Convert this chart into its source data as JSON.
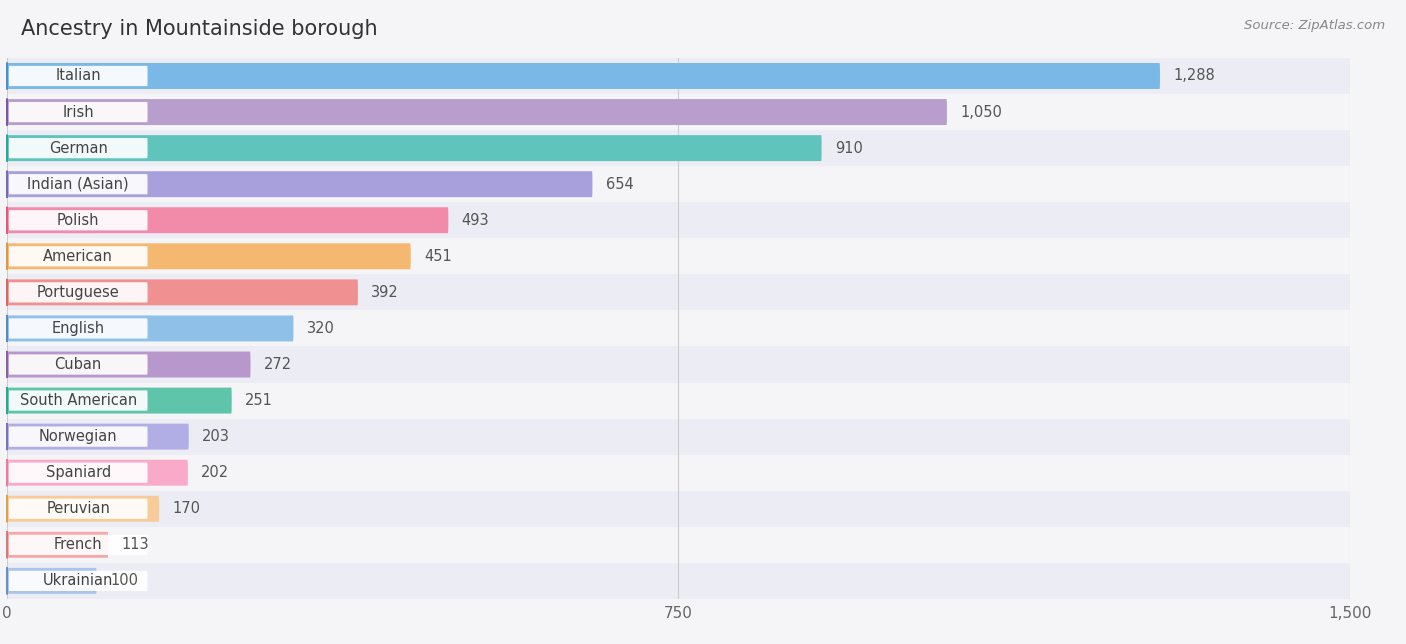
{
  "title": "Ancestry in Mountainside borough",
  "source": "Source: ZipAtlas.com",
  "categories": [
    "Italian",
    "Irish",
    "German",
    "Indian (Asian)",
    "Polish",
    "American",
    "Portuguese",
    "English",
    "Cuban",
    "South American",
    "Norwegian",
    "Spaniard",
    "Peruvian",
    "French",
    "Ukrainian"
  ],
  "values": [
    1288,
    1050,
    910,
    654,
    493,
    451,
    392,
    320,
    272,
    251,
    203,
    202,
    170,
    113,
    100
  ],
  "bar_colors": [
    "#7ab8e8",
    "#b89ecc",
    "#5ec4bc",
    "#a8a0dc",
    "#f28aaa",
    "#f5b870",
    "#f09090",
    "#8ec0e8",
    "#b898cc",
    "#5ec4aa",
    "#b0aee4",
    "#f8aac8",
    "#f8cc98",
    "#f4a8a8",
    "#aac4ec"
  ],
  "dot_colors": [
    "#4a90d0",
    "#7a58a8",
    "#28a898",
    "#7868b8",
    "#e85878",
    "#e09840",
    "#d86860",
    "#5888c8",
    "#8860a8",
    "#28a890",
    "#7870c0",
    "#f07898",
    "#e0a050",
    "#d87878",
    "#6890c8"
  ],
  "row_colors": [
    "#ececf4",
    "#f5f5f8",
    "#ececf4",
    "#f5f5f8",
    "#ececf4",
    "#f5f5f8",
    "#ececf4",
    "#f5f5f8",
    "#ececf4",
    "#f5f5f8",
    "#ececf4",
    "#f5f5f8",
    "#ececf4",
    "#f5f5f8",
    "#ececf4"
  ],
  "xlim": [
    0,
    1500
  ],
  "xticks": [
    0,
    750,
    1500
  ],
  "background_color": "#f5f5f8",
  "title_fontsize": 15,
  "label_fontsize": 10.5,
  "value_fontsize": 10.5,
  "source_fontsize": 9.5
}
